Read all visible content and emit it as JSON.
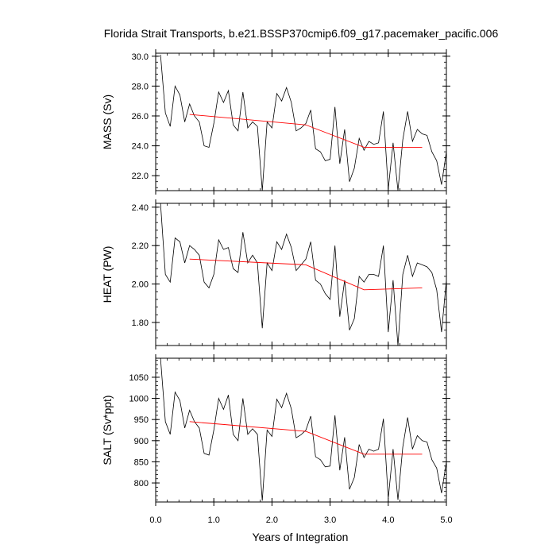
{
  "chart_data": {
    "type": "line",
    "title": "Florida Strait Transports, b.e21.BSSP370cmip6.f09_g17.pacemaker_pacific.006",
    "xlabel": "Years of Integration",
    "xlim": [
      0.0,
      5.0
    ],
    "xticks": [
      "0.0",
      "1.0",
      "2.0",
      "3.0",
      "4.0",
      "5.0"
    ],
    "x": [
      0.0833,
      0.1667,
      0.25,
      0.3333,
      0.4167,
      0.5,
      0.5833,
      0.6667,
      0.75,
      0.8333,
      0.9167,
      1.0,
      1.0833,
      1.1667,
      1.25,
      1.3333,
      1.4167,
      1.5,
      1.5833,
      1.6667,
      1.75,
      1.8333,
      1.9167,
      2.0,
      2.0833,
      2.1667,
      2.25,
      2.3333,
      2.4167,
      2.5,
      2.5833,
      2.6667,
      2.75,
      2.8333,
      2.9167,
      3.0,
      3.0833,
      3.1667,
      3.25,
      3.3333,
      3.4167,
      3.5,
      3.5833,
      3.6667,
      3.75,
      3.8333,
      3.9167,
      4.0,
      4.0833,
      4.1667,
      4.25,
      4.3333,
      4.4167,
      4.5,
      4.5833,
      4.6667,
      4.75,
      4.8333,
      4.9167,
      5.0
    ],
    "panels": [
      {
        "ylabel": "MASS (Sv)",
        "ylim": [
          21.0,
          30.2
        ],
        "yticks": [
          "22.0",
          "24.0",
          "26.0",
          "28.0",
          "30.0"
        ],
        "series": [
          {
            "color": "#000000",
            "values": [
              30.1,
              26.2,
              25.3,
              28.0,
              27.4,
              25.6,
              26.8,
              26.0,
              25.6,
              24.0,
              23.9,
              25.5,
              27.6,
              26.9,
              27.7,
              25.4,
              25.0,
              27.6,
              25.2,
              25.6,
              25.3,
              21.0,
              25.6,
              25.2,
              27.5,
              27.0,
              27.9,
              26.9,
              25.0,
              25.2,
              25.5,
              26.4,
              23.8,
              23.6,
              23.0,
              23.1,
              26.6,
              22.8,
              25.1,
              21.6,
              22.5,
              24.5,
              23.7,
              24.3,
              24.1,
              24.2,
              26.3,
              21.1,
              24.2,
              21.0,
              24.4,
              26.3,
              24.3,
              25.1,
              24.8,
              24.7,
              23.6,
              23.0,
              21.4,
              23.6
            ]
          },
          {
            "color": "#ff0000",
            "values": [
              null,
              null,
              null,
              null,
              null,
              null,
              26.1,
              null,
              null,
              null,
              null,
              null,
              null,
              null,
              null,
              null,
              null,
              null,
              null,
              null,
              null,
              null,
              null,
              null,
              null,
              null,
              null,
              null,
              null,
              null,
              25.4,
              null,
              null,
              null,
              null,
              null,
              null,
              null,
              null,
              null,
              null,
              null,
              23.9,
              null,
              null,
              null,
              null,
              null,
              null,
              null,
              null,
              null,
              null,
              null,
              23.9,
              null,
              null,
              null,
              null,
              null
            ]
          }
        ]
      },
      {
        "ylabel": "HEAT (PW)",
        "ylim": [
          1.68,
          2.42
        ],
        "yticks": [
          "1.80",
          "2.00",
          "2.20",
          "2.40"
        ],
        "series": [
          {
            "color": "#000000",
            "values": [
              2.42,
              2.05,
              2.01,
              2.24,
              2.22,
              2.11,
              2.2,
              2.18,
              2.15,
              2.01,
              1.98,
              2.05,
              2.23,
              2.18,
              2.19,
              2.08,
              2.06,
              2.27,
              2.11,
              2.15,
              2.11,
              1.77,
              2.11,
              2.07,
              2.22,
              2.18,
              2.26,
              2.19,
              2.07,
              2.1,
              2.13,
              2.22,
              2.02,
              2.0,
              1.95,
              1.92,
              2.2,
              1.83,
              2.02,
              1.76,
              1.82,
              2.04,
              2.01,
              2.05,
              2.05,
              2.04,
              2.2,
              1.75,
              2.02,
              1.68,
              2.05,
              2.15,
              2.04,
              2.11,
              2.1,
              2.09,
              2.06,
              1.97,
              1.75,
              2.02
            ]
          },
          {
            "color": "#ff0000",
            "values": [
              null,
              null,
              null,
              null,
              null,
              null,
              2.13,
              null,
              null,
              null,
              null,
              null,
              null,
              null,
              null,
              null,
              null,
              null,
              null,
              null,
              null,
              null,
              null,
              null,
              null,
              null,
              null,
              null,
              null,
              null,
              2.1,
              null,
              null,
              null,
              null,
              null,
              null,
              null,
              null,
              null,
              null,
              null,
              1.97,
              null,
              null,
              null,
              null,
              null,
              null,
              null,
              null,
              null,
              null,
              null,
              1.98,
              null,
              null,
              null,
              null,
              null
            ]
          }
        ]
      },
      {
        "ylabel": "SALT (Sv*ppt)",
        "ylim": [
          755,
          1095
        ],
        "yticks": [
          "800",
          "850",
          "900",
          "950",
          "1000",
          "1050"
        ],
        "series": [
          {
            "color": "#000000",
            "values": [
              1095,
              945,
              915,
              1015,
              995,
              930,
              972,
              945,
              930,
              870,
              866,
              925,
              1000,
              974,
              1008,
              915,
              900,
              1000,
              915,
              928,
              915,
              758,
              925,
              910,
              998,
              978,
              1012,
              975,
              907,
              914,
              925,
              958,
              862,
              855,
              838,
              840,
              960,
              830,
              908,
              785,
              813,
              891,
              860,
              880,
              875,
              880,
              952,
              763,
              880,
              760,
              885,
              955,
              880,
              912,
              900,
              897,
              855,
              835,
              776,
              850
            ]
          },
          {
            "color": "#ff0000",
            "values": [
              null,
              null,
              null,
              null,
              null,
              null,
              945,
              null,
              null,
              null,
              null,
              null,
              null,
              null,
              null,
              null,
              null,
              null,
              null,
              null,
              null,
              null,
              null,
              null,
              null,
              null,
              null,
              null,
              null,
              null,
              922,
              null,
              null,
              null,
              null,
              null,
              null,
              null,
              null,
              null,
              null,
              null,
              868,
              null,
              null,
              null,
              null,
              null,
              null,
              null,
              null,
              null,
              null,
              null,
              868,
              null,
              null,
              null,
              null,
              null
            ]
          }
        ]
      }
    ]
  }
}
